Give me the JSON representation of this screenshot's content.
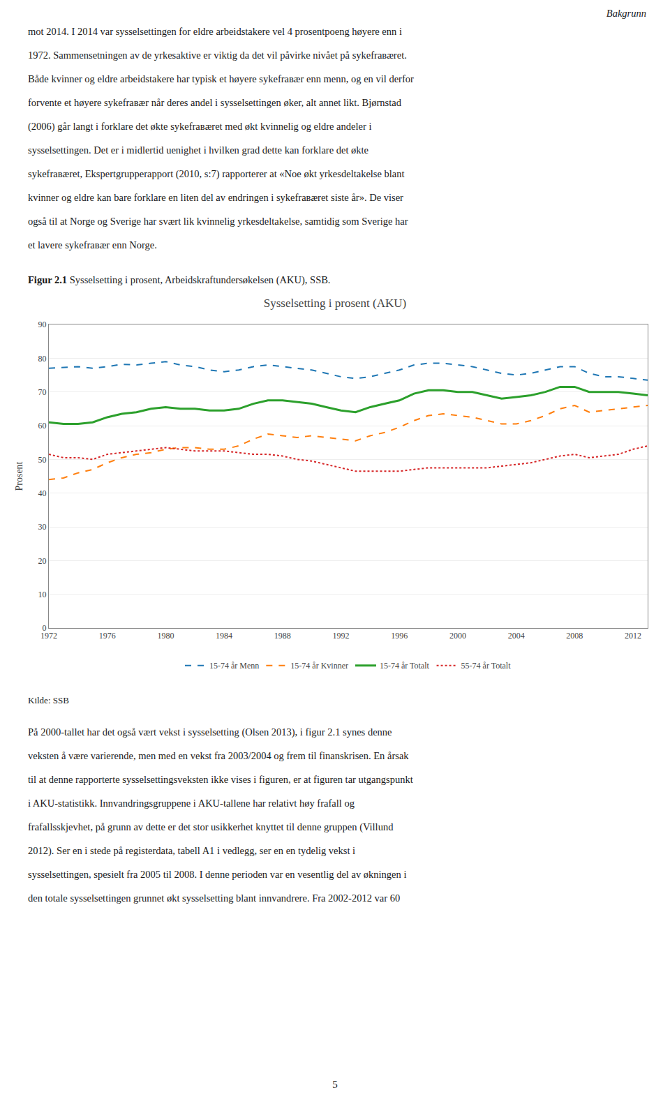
{
  "chart_data": {
    "type": "line",
    "title": "Sysselsetting i prosent (AKU)",
    "ylabel": "Prosent",
    "x": [
      1972,
      1973,
      1974,
      1975,
      1976,
      1977,
      1978,
      1979,
      1980,
      1981,
      1982,
      1983,
      1984,
      1985,
      1986,
      1987,
      1988,
      1989,
      1990,
      1991,
      1992,
      1993,
      1994,
      1995,
      1996,
      1997,
      1998,
      1999,
      2000,
      2001,
      2002,
      2003,
      2004,
      2005,
      2006,
      2007,
      2008,
      2009,
      2010,
      2011,
      2012,
      2013
    ],
    "xlim": [
      1972,
      2013
    ],
    "xticks": [
      1972,
      1976,
      1980,
      1984,
      1988,
      1992,
      1996,
      2000,
      2004,
      2008,
      2012
    ],
    "ylim": [
      0,
      90
    ],
    "yticks": [
      0,
      10,
      20,
      30,
      40,
      50,
      60,
      70,
      80,
      90
    ],
    "grid": true,
    "legend": "bottom",
    "series": [
      {
        "name": "15-74 år Menn",
        "line_style": "dashed",
        "values": [
          77.0,
          77.2,
          77.5,
          77.0,
          77.5,
          78.2,
          78.0,
          78.5,
          79.0,
          78.0,
          77.5,
          76.5,
          76.0,
          76.5,
          77.5,
          78.0,
          77.5,
          77.0,
          76.5,
          75.5,
          74.5,
          74.0,
          74.5,
          75.5,
          76.5,
          78.0,
          78.5,
          78.5,
          78.0,
          77.5,
          76.5,
          75.5,
          75.0,
          75.5,
          76.5,
          77.5,
          77.5,
          75.5,
          74.5,
          74.5,
          74.0,
          73.5
        ]
      },
      {
        "name": "15-74 år Kvinner",
        "line_style": "dashed",
        "values": [
          44.0,
          44.5,
          46.0,
          47.0,
          49.0,
          50.5,
          51.5,
          52.0,
          53.0,
          53.5,
          53.5,
          53.0,
          53.0,
          54.0,
          56.0,
          57.5,
          57.0,
          56.5,
          57.0,
          56.5,
          56.0,
          55.5,
          57.0,
          58.0,
          59.5,
          61.5,
          63.0,
          63.5,
          63.0,
          62.5,
          61.5,
          60.5,
          60.5,
          61.5,
          63.0,
          65.0,
          66.0,
          64.0,
          64.5,
          65.0,
          65.5,
          66.0
        ]
      },
      {
        "name": "15-74 år Totalt",
        "line_style": "solid",
        "values": [
          61.0,
          60.5,
          60.5,
          61.0,
          62.5,
          63.5,
          64.0,
          65.0,
          65.5,
          65.0,
          65.0,
          64.5,
          64.5,
          65.0,
          66.5,
          67.5,
          67.5,
          67.0,
          66.5,
          65.5,
          64.5,
          64.0,
          65.5,
          66.5,
          67.5,
          69.5,
          70.5,
          70.5,
          70.0,
          70.0,
          69.0,
          68.0,
          68.5,
          69.0,
          70.0,
          71.5,
          71.5,
          70.0,
          70.0,
          70.0,
          69.5,
          69.0
        ]
      },
      {
        "name": "55-74 år Totalt",
        "line_style": "dotted",
        "values": [
          51.5,
          50.5,
          50.5,
          50.0,
          51.5,
          52.0,
          52.5,
          53.0,
          53.5,
          53.0,
          52.5,
          52.5,
          52.5,
          52.0,
          51.5,
          51.5,
          51.0,
          50.0,
          49.5,
          48.5,
          47.5,
          46.5,
          46.5,
          46.5,
          46.5,
          47.0,
          47.5,
          47.5,
          47.5,
          47.5,
          47.5,
          48.0,
          48.5,
          49.0,
          50.0,
          51.0,
          51.5,
          50.5,
          51.0,
          51.5,
          53.0,
          54.0
        ]
      }
    ]
  },
  "page_header": "Bakgrunn",
  "para1_lines": [
    "mot 2014. I 2014 var sysselsettingen for eldre arbeidstakere vel 4 prosentpoeng høyere enn i",
    "1972. Sammensetningen av de yrkesaktive er viktig da det vil påvirke nivået på sykefrавæret.",
    "Både kvinner og eldre arbeidstakere har typisk et høyere sykefrавær enn menn, og en vil derfor",
    "forvente et høyere sykefrавær når deres andel i sysselsettingen øker, alt annet likt. Bjørnstad",
    "(2006) går langt i forklare det økte sykefrавæret med økt kvinnelig og eldre andeler i",
    "sysselsettingen. Det er i midlertid uenighet i hvilken grad dette kan forklare det økte",
    "sykefrавæret, Ekspertgrupperapport (2010, s:7) rapporterer at «Noe økt yrkesdeltakelse blant",
    "kvinner og eldre kan bare forklare en liten del av endringen i sykefrавæret siste år». De viser",
    "også til at Norge og Sverige har svært lik kvinnelig yrkesdeltakelse, samtidig som Sverige har",
    "et lavere sykefrавær enn Norge."
  ],
  "figur_label": "Figur 2.1",
  "figur_text": " Sysselsetting i prosent, Arbeidskraftundersøkelsen (AKU), SSB.",
  "kilde_text": "Kilde: SSB",
  "para2_lines": [
    "På 2000-tallet har det også vært vekst i sysselsetting (Olsen 2013), i figur 2.1 synes denne",
    "veksten å være varierende, men med en vekst fra 2003/2004 og frem til finanskrisen. En årsak",
    "til at denne rapporterte sysselsettingsveksten ikke vises i figuren, er at figuren tar utgangspunkt",
    "i AKU-statistikk. Innvandringsgruppene i AKU-tallene har relativt høy frafall og",
    "frafallsskjevhet, på grunn av dette er det stor usikkerhet knyttet til denne gruppen (Villund",
    "2012). Ser en i stede på registerdata, tabell A1 i vedlegg, ser en en tydelig vekst i",
    "sysselsettingen, spesielt fra 2005 til 2008. I denne perioden var en vesentlig del av økningen i",
    "den totale sysselsettingen grunnet økt sysselsetting blant innvandrere. Fra 2002-2012 var 60"
  ],
  "page_footer": "5"
}
